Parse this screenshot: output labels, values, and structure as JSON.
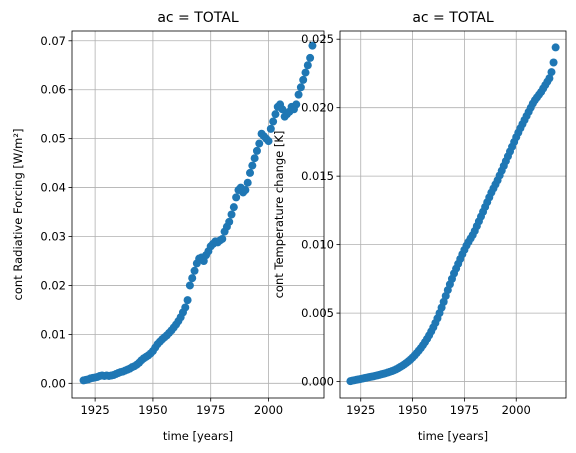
{
  "chart_data": [
    {
      "type": "scatter",
      "title": "ac = TOTAL",
      "xlabel": "time [years]",
      "ylabel": "cont Radiative Forcing [W/m²]",
      "xlim": [
        1915,
        2024
      ],
      "ylim": [
        -0.003,
        0.072
      ],
      "xticks": [
        1925,
        1950,
        1975,
        2000
      ],
      "xtick_labels": [
        "1925",
        "1950",
        "1975",
        "2000"
      ],
      "yticks": [
        0.0,
        0.01,
        0.02,
        0.03,
        0.04,
        0.05,
        0.06,
        0.07
      ],
      "ytick_labels": [
        "0.00",
        "0.01",
        "0.02",
        "0.03",
        "0.04",
        "0.05",
        "0.06",
        "0.07"
      ],
      "grid": true,
      "marker_color": "#1f77b4",
      "x": [
        1920,
        1921,
        1922,
        1923,
        1924,
        1925,
        1926,
        1927,
        1928,
        1929,
        1930,
        1931,
        1932,
        1933,
        1934,
        1935,
        1936,
        1937,
        1938,
        1939,
        1940,
        1941,
        1942,
        1943,
        1944,
        1945,
        1946,
        1947,
        1948,
        1949,
        1950,
        1951,
        1952,
        1953,
        1954,
        1955,
        1956,
        1957,
        1958,
        1959,
        1960,
        1961,
        1962,
        1963,
        1964,
        1965,
        1966,
        1967,
        1968,
        1969,
        1970,
        1971,
        1972,
        1973,
        1974,
        1975,
        1976,
        1977,
        1978,
        1979,
        1980,
        1981,
        1982,
        1983,
        1984,
        1985,
        1986,
        1987,
        1988,
        1989,
        1990,
        1991,
        1992,
        1993,
        1994,
        1995,
        1996,
        1997,
        1998,
        1999,
        2000,
        2001,
        2002,
        2003,
        2004,
        2005,
        2006,
        2007,
        2008,
        2009,
        2010,
        2011,
        2012,
        2013,
        2014,
        2015,
        2016,
        2017,
        2018,
        2019
      ],
      "y": [
        0.0006,
        0.0007,
        0.0008,
        0.001,
        0.0011,
        0.0012,
        0.0013,
        0.0015,
        0.0016,
        0.0015,
        0.0016,
        0.0015,
        0.0016,
        0.0017,
        0.0019,
        0.0021,
        0.0023,
        0.0024,
        0.0026,
        0.0028,
        0.003,
        0.0033,
        0.0035,
        0.0038,
        0.0042,
        0.0047,
        0.0051,
        0.0054,
        0.0057,
        0.0061,
        0.0066,
        0.0073,
        0.008,
        0.0085,
        0.009,
        0.0094,
        0.0098,
        0.0103,
        0.0108,
        0.0114,
        0.012,
        0.0127,
        0.0135,
        0.0145,
        0.0155,
        0.017,
        0.02,
        0.0215,
        0.023,
        0.0245,
        0.0255,
        0.0257,
        0.025,
        0.0262,
        0.027,
        0.028,
        0.0285,
        0.029,
        0.0288,
        0.0292,
        0.0295,
        0.031,
        0.032,
        0.033,
        0.0345,
        0.036,
        0.038,
        0.0395,
        0.04,
        0.039,
        0.0395,
        0.041,
        0.043,
        0.0445,
        0.046,
        0.0475,
        0.049,
        0.051,
        0.0505,
        0.05,
        0.0495,
        0.052,
        0.0535,
        0.055,
        0.0565,
        0.057,
        0.056,
        0.0545,
        0.055,
        0.0555,
        0.0565,
        0.056,
        0.057,
        0.059,
        0.0605,
        0.062,
        0.0635,
        0.065,
        0.0665,
        0.069
      ]
    },
    {
      "type": "scatter",
      "title": "ac = TOTAL",
      "xlabel": "time [years]",
      "ylabel": "cont Temperature change [K]",
      "xlim": [
        1915,
        2024
      ],
      "ylim": [
        -0.0012,
        0.0256
      ],
      "xticks": [
        1925,
        1950,
        1975,
        2000
      ],
      "xtick_labels": [
        "1925",
        "1950",
        "1975",
        "2000"
      ],
      "yticks": [
        0.0,
        0.005,
        0.01,
        0.015,
        0.02,
        0.025
      ],
      "ytick_labels": [
        "0.000",
        "0.005",
        "0.010",
        "0.015",
        "0.020",
        "0.025"
      ],
      "grid": true,
      "marker_color": "#1f77b4",
      "x": [
        1920,
        1921,
        1922,
        1923,
        1924,
        1925,
        1926,
        1927,
        1928,
        1929,
        1930,
        1931,
        1932,
        1933,
        1934,
        1935,
        1936,
        1937,
        1938,
        1939,
        1940,
        1941,
        1942,
        1943,
        1944,
        1945,
        1946,
        1947,
        1948,
        1949,
        1950,
        1951,
        1952,
        1953,
        1954,
        1955,
        1956,
        1957,
        1958,
        1959,
        1960,
        1961,
        1962,
        1963,
        1964,
        1965,
        1966,
        1967,
        1968,
        1969,
        1970,
        1971,
        1972,
        1973,
        1974,
        1975,
        1976,
        1977,
        1978,
        1979,
        1980,
        1981,
        1982,
        1983,
        1984,
        1985,
        1986,
        1987,
        1988,
        1989,
        1990,
        1991,
        1992,
        1993,
        1994,
        1995,
        1996,
        1997,
        1998,
        1999,
        2000,
        2001,
        2002,
        2003,
        2004,
        2005,
        2006,
        2007,
        2008,
        2009,
        2010,
        2011,
        2012,
        2013,
        2014,
        2015,
        2016,
        2017,
        2018,
        2019
      ],
      "y": [
        3e-05,
        7e-05,
        0.0001,
        0.00013,
        0.00016,
        0.00019,
        0.00022,
        0.00026,
        0.00029,
        0.00032,
        0.00035,
        0.00038,
        0.00042,
        0.00045,
        0.00049,
        0.00053,
        0.00057,
        0.00061,
        0.00066,
        0.00071,
        0.00076,
        0.00082,
        0.00089,
        0.00097,
        0.00106,
        0.00115,
        0.00125,
        0.00136,
        0.00148,
        0.00161,
        0.00175,
        0.00191,
        0.00208,
        0.00226,
        0.00245,
        0.00266,
        0.00288,
        0.00312,
        0.00338,
        0.00366,
        0.00396,
        0.00428,
        0.00462,
        0.005,
        0.0054,
        0.00582,
        0.00625,
        0.00668,
        0.0071,
        0.0075,
        0.0079,
        0.00825,
        0.0086,
        0.00895,
        0.0093,
        0.00962,
        0.00993,
        0.0102,
        0.01045,
        0.0107,
        0.011,
        0.01135,
        0.0117,
        0.01205,
        0.0124,
        0.01275,
        0.0131,
        0.01345,
        0.0138,
        0.0141,
        0.0144,
        0.0147,
        0.01505,
        0.0154,
        0.01575,
        0.0161,
        0.01645,
        0.0168,
        0.01715,
        0.0175,
        0.01785,
        0.01818,
        0.0185,
        0.0188,
        0.0191,
        0.0194,
        0.0197,
        0.02,
        0.0203,
        0.02055,
        0.02075,
        0.02095,
        0.02115,
        0.0214,
        0.02165,
        0.0219,
        0.02215,
        0.0226,
        0.0233,
        0.0244
      ]
    }
  ]
}
